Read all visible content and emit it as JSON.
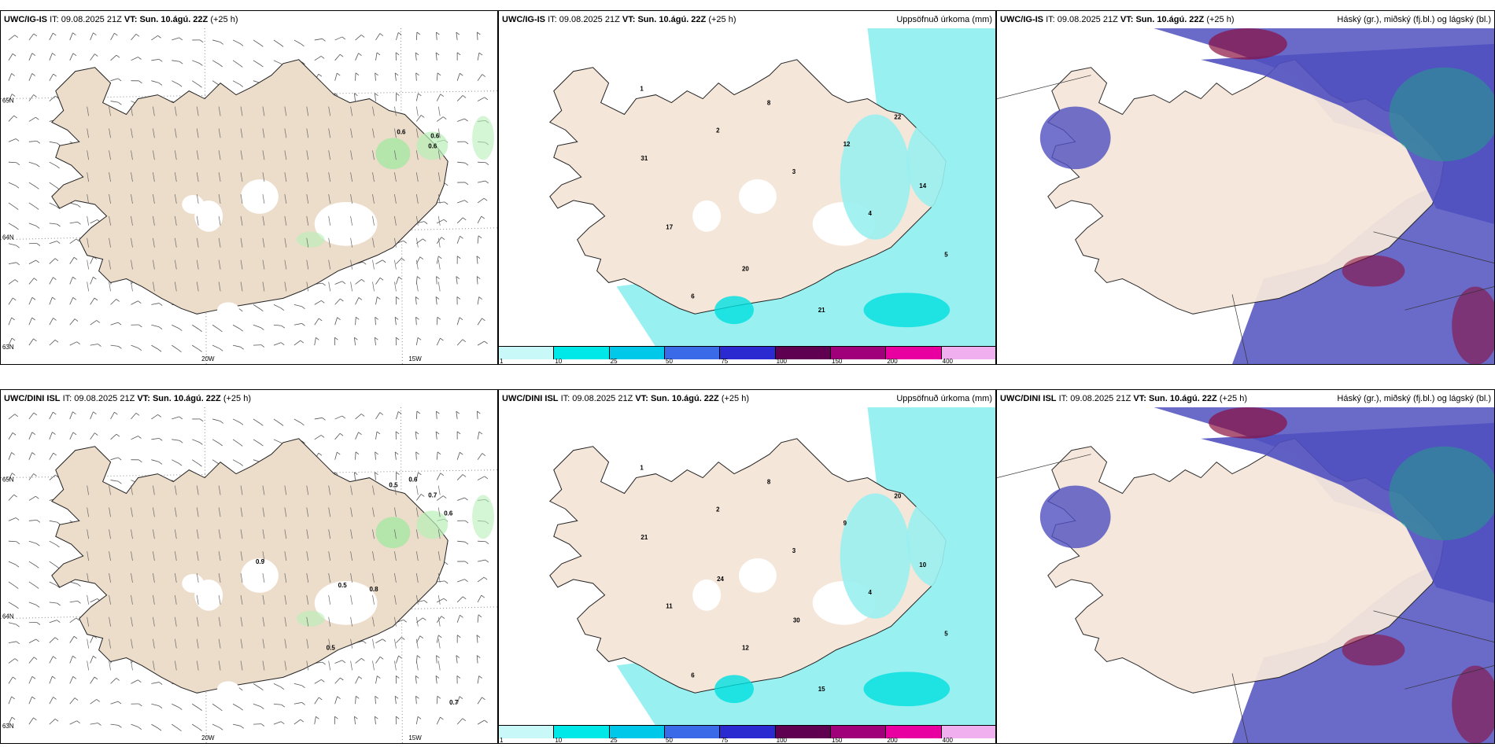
{
  "panels": [
    {
      "model": "UWC/IG-IS",
      "it_label": "IT:",
      "it": "09.08.2025 21Z",
      "vt_label": "VT:",
      "vt": "Sun. 10.ágú. 22Z",
      "lead": "(+25 h)",
      "right": ""
    },
    {
      "model": "UWC/IG-IS",
      "it_label": "IT:",
      "it": "09.08.2025 21Z",
      "vt_label": "VT:",
      "vt": "Sun. 10.ágú. 22Z",
      "lead": "(+25 h)",
      "right": "Uppsöfnuð úrkoma (mm)"
    },
    {
      "model": "UWC/IG-IS",
      "it_label": "IT:",
      "it": "09.08.2025 21Z",
      "vt_label": "VT:",
      "vt": "Sun. 10.ágú. 22Z",
      "lead": "(+25 h)",
      "right": "Háský (gr.), miðský (fj.bl.) og lágský (bl.)"
    },
    {
      "model": "UWC/DINI ISL",
      "it_label": "IT:",
      "it": "09.08.2025 21Z",
      "vt_label": "VT:",
      "vt": "Sun. 10.ágú. 22Z",
      "lead": "(+25 h)",
      "right": ""
    },
    {
      "model": "UWC/DINI ISL",
      "it_label": "IT:",
      "it": "09.08.2025 21Z",
      "vt_label": "VT:",
      "vt": "Sun. 10.ágú. 22Z",
      "lead": "(+25 h)",
      "right": "Uppsöfnuð úrkoma (mm)"
    },
    {
      "model": "UWC/DINI ISL",
      "it_label": "IT:",
      "it": "09.08.2025 21Z",
      "vt_label": "VT:",
      "vt": "Sun. 10.ágú. 22Z",
      "lead": "(+25 h)",
      "right": "Háský (gr.), miðský (fj.bl.) og lágský (bl.)"
    }
  ],
  "grid_labels": {
    "lon_20": "20W",
    "lon_15": "15W",
    "lat_65": "65N",
    "lat_64": "64N",
    "lat_63": "63N"
  },
  "colorbar": {
    "ticks": [
      "1",
      "10",
      "25",
      "50",
      "75",
      "100",
      "150",
      "200",
      "400"
    ],
    "colors": [
      "#c8f8f8",
      "#00e8e8",
      "#00c8e8",
      "#3a6ae8",
      "#2a2ad0",
      "#600050",
      "#a0007a",
      "#e800a0",
      "#f0b0f0"
    ]
  },
  "colors": {
    "land": "#f5e6da",
    "land_wind": "#ecdcca",
    "coast": "#222222",
    "rain": "#99f0f0",
    "rain_mid": "#00e0e0",
    "low_cloud": "#5050c0",
    "mid_cloud": "#2a9a90",
    "high_cloud": "#8a1040"
  },
  "rain_labels_top": [
    "1",
    "2",
    "3",
    "4",
    "5",
    "6",
    "8",
    "12",
    "14",
    "17",
    "20",
    "21",
    "22",
    "31"
  ],
  "rain_labels_bottom": [
    "1",
    "2",
    "3",
    "4",
    "5",
    "6",
    "8",
    "9",
    "10",
    "11",
    "12",
    "15",
    "20",
    "21",
    "24",
    "30"
  ],
  "wind_labels_top": [
    "0.6",
    "0.6",
    "0.6"
  ],
  "wind_labels_bottom": [
    "0.5",
    "0.6",
    "0.7",
    "0.6",
    "0.9",
    "0.5",
    "0.8",
    "0.5",
    "0.7"
  ]
}
